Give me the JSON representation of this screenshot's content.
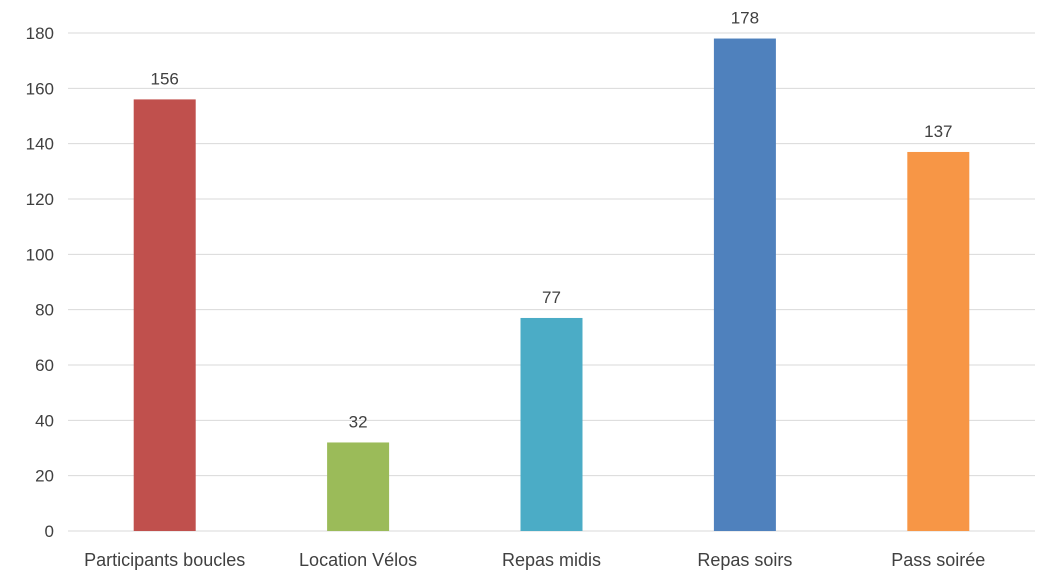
{
  "chart_data": {
    "type": "bar",
    "title": "",
    "xlabel": "",
    "ylabel": "",
    "ylim": [
      0,
      180
    ],
    "yticks": [
      0,
      20,
      40,
      60,
      80,
      100,
      120,
      140,
      160,
      180
    ],
    "categories": [
      "Participants boucles",
      "Location Vélos",
      "Repas midis",
      "Repas soirs",
      "Pass soirée"
    ],
    "values": [
      156,
      32,
      77,
      178,
      137
    ],
    "colors": [
      "#c0504d",
      "#9bbb59",
      "#4bacc6",
      "#4f81bd",
      "#f79646"
    ],
    "data_labels": true,
    "grid": true,
    "legend": "none"
  }
}
